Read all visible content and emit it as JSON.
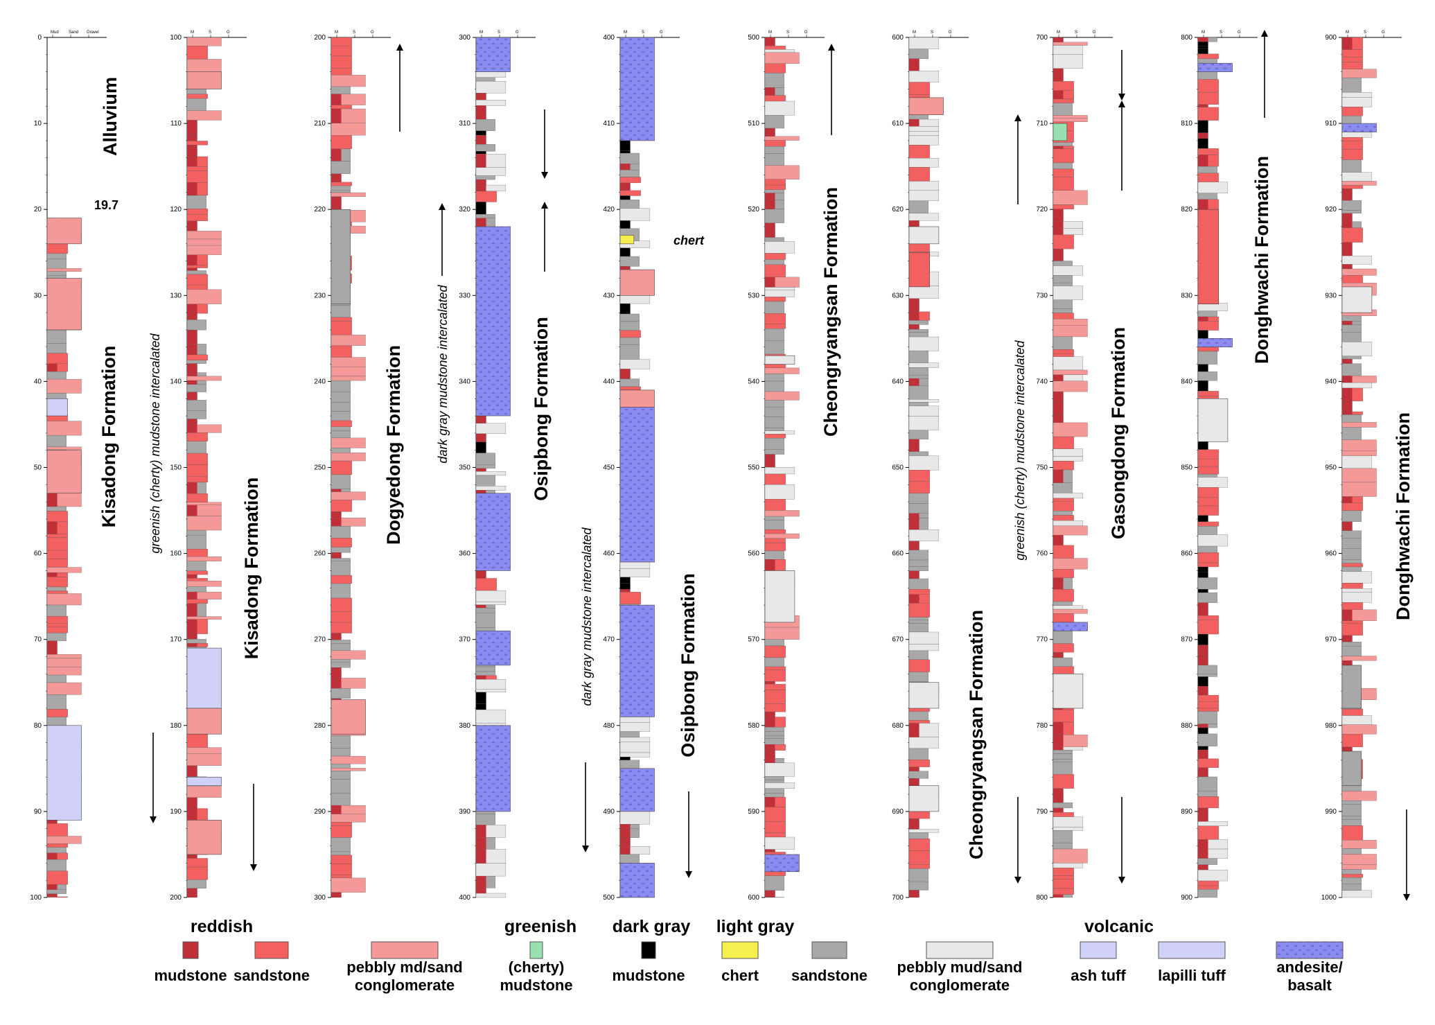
{
  "columns": [
    {
      "id": "col-1",
      "ticks": [
        "0",
        "10",
        "20",
        "30",
        "40",
        "50",
        "60",
        "70",
        "80",
        "90",
        "100"
      ],
      "header": [
        "Mud",
        "Sand",
        "Gravel"
      ],
      "annotations": [
        {
          "text": "Alluvium"
        },
        {
          "text": "19.7"
        },
        {
          "text": "Kisadong  Formation"
        }
      ]
    },
    {
      "id": "col-2",
      "ticks": [
        "100",
        "110",
        "120",
        "130",
        "140",
        "150",
        "160",
        "170",
        "180",
        "190",
        "200"
      ],
      "header": [
        "M",
        "S",
        "G"
      ],
      "annotations": [
        {
          "text": "greenish (cherty)  mudstone intercalated"
        },
        {
          "text": "Kisadong  Formation"
        }
      ]
    },
    {
      "id": "col-3",
      "ticks": [
        "200",
        "210",
        "220",
        "230",
        "240",
        "250",
        "260",
        "270",
        "280",
        "290",
        "300"
      ],
      "header": [
        "M",
        "S",
        "G"
      ],
      "annotations": [
        {
          "text": "Dogyedong  Formation"
        }
      ]
    },
    {
      "id": "col-4",
      "ticks": [
        "300",
        "310",
        "320",
        "330",
        "340",
        "350",
        "360",
        "370",
        "380",
        "390",
        "400"
      ],
      "header": [
        "M",
        "S",
        "G"
      ],
      "annotations": [
        {
          "text": "dark gray mudstone intercalated"
        },
        {
          "text": "Osipbong   Formation"
        }
      ]
    },
    {
      "id": "col-5",
      "ticks": [
        "400",
        "410",
        "420",
        "430",
        "440",
        "450",
        "460",
        "470",
        "480",
        "490",
        "500"
      ],
      "header": [
        "M",
        "S",
        "G"
      ],
      "annotations": [
        {
          "text": "chert"
        },
        {
          "text": "dark gray mudstone intercalated"
        },
        {
          "text": "Osipbong   Formation"
        }
      ]
    },
    {
      "id": "col-6",
      "ticks": [
        "500",
        "510",
        "520",
        "530",
        "540",
        "550",
        "560",
        "570",
        "580",
        "590",
        "600"
      ],
      "header": [
        "M",
        "S",
        "G"
      ],
      "annotations": [
        {
          "text": "Cheongryangsan   Formation"
        }
      ]
    },
    {
      "id": "col-7",
      "ticks": [
        "600",
        "610",
        "620",
        "630",
        "640",
        "650",
        "660",
        "670",
        "680",
        "690",
        "700"
      ],
      "header": [
        "M",
        "S",
        "G"
      ],
      "annotations": [
        {
          "text": "Cheongryangsan   Formation"
        }
      ]
    },
    {
      "id": "col-8",
      "ticks": [
        "700",
        "710",
        "720",
        "730",
        "740",
        "750",
        "760",
        "770",
        "780",
        "790",
        "800"
      ],
      "header": [
        "M",
        "S",
        "G"
      ],
      "annotations": [
        {
          "text": "greenish (cherty)  mudstone intercalated"
        },
        {
          "text": "Gasongdong   Formation"
        }
      ]
    },
    {
      "id": "col-9",
      "ticks": [
        "800",
        "810",
        "820",
        "830",
        "840",
        "850",
        "860",
        "870",
        "880",
        "890",
        "900"
      ],
      "header": [
        "M",
        "S",
        "G"
      ],
      "annotations": [
        {
          "text": "Donghwachi   Formation"
        }
      ]
    },
    {
      "id": "col-10",
      "ticks": [
        "900",
        "910",
        "920",
        "930",
        "940",
        "950",
        "960",
        "970",
        "980",
        "990",
        "1000"
      ],
      "header": [
        "M",
        "S",
        "G"
      ],
      "annotations": [
        {
          "text": "Donghwachi   Formation"
        }
      ]
    }
  ],
  "legend": {
    "groups": [
      {
        "id": "reddish",
        "label": "reddish"
      },
      {
        "id": "greenish",
        "label": "greenish"
      },
      {
        "id": "darkgray",
        "label": "dark gray"
      },
      {
        "id": "lightgray",
        "label": "light gray"
      },
      {
        "id": "volcanic",
        "label": "volcanic"
      }
    ],
    "items": [
      {
        "id": "red-mud",
        "label": "mudstone",
        "color": "#c03038"
      },
      {
        "id": "red-sand",
        "label": "sandstone",
        "color": "#f26060"
      },
      {
        "id": "red-pebbly",
        "label": "pebbly md/sand conglomerate",
        "color": "#f59898"
      },
      {
        "id": "green-mud",
        "label": "(cherty) mudstone",
        "color": "#98e0b0"
      },
      {
        "id": "dark-mud",
        "label": "mudstone",
        "color": "#000000"
      },
      {
        "id": "chert",
        "label": "chert",
        "color": "#f5f050"
      },
      {
        "id": "gray-sand",
        "label": "sandstone",
        "color": "#a8a8a8"
      },
      {
        "id": "gray-pebbly",
        "label": "pebbly mud/sand conglomerate",
        "color": "#e8e8e8"
      },
      {
        "id": "ash-tuff",
        "label": "ash tuff",
        "color": "#d0d0f8"
      },
      {
        "id": "lapilli-tuff",
        "label": "lapilli tuff",
        "color": "#d0d0f8"
      },
      {
        "id": "andesite",
        "label": "andesite/ basalt",
        "color": "#8c8cf0"
      }
    ]
  }
}
